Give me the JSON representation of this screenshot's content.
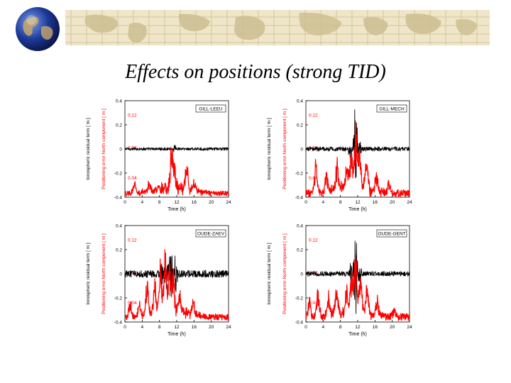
{
  "slide": {
    "title": "Effects on positions (strong TID)"
  },
  "colors": {
    "banner": "#efe6c9",
    "banner_lines": "#d2c59a",
    "ionosphere_series": "#000000",
    "position_series": "#ff0000"
  },
  "chart_data": [
    {
      "type": "line",
      "title": "GILL-LEEU",
      "xlabel": "Time (h)",
      "ylabel_left": "Positioning error North component [ m ]",
      "ylabel_right": "Ionospheric residual term [ m ]",
      "xlim": [
        0,
        24
      ],
      "xticks": [
        0,
        4,
        8,
        12,
        16,
        20,
        24
      ],
      "ylim": [
        -0.4,
        0.4
      ],
      "yticks": [
        -0.4,
        -0.2,
        0,
        0.2,
        0.4
      ],
      "ytick_labels": [
        "-0.4",
        "-0.2",
        "0",
        "0.2",
        "0.4"
      ],
      "inner_labels": [
        "0.12",
        "0.08",
        "0.04"
      ],
      "series": [
        {
          "name": "Ionospheric residual term",
          "color": "#000000",
          "baseline": 0.0,
          "noise": 0.012,
          "spikes": [
            {
              "t": 11.5,
              "amp": 0.03
            }
          ]
        },
        {
          "name": "Positioning error North component",
          "color": "#ff0000",
          "baseline": -0.37,
          "noise": 0.02,
          "spikes": [
            {
              "t": 2.2,
              "amp": 0.09
            },
            {
              "t": 5.5,
              "amp": 0.06
            },
            {
              "t": 10.8,
              "amp": 0.27
            },
            {
              "t": 11.4,
              "amp": 0.17
            },
            {
              "t": 14.3,
              "amp": 0.2
            },
            {
              "t": 16,
              "amp": 0.07
            }
          ]
        }
      ]
    },
    {
      "type": "line",
      "title": "GILL-MECH",
      "xlabel": "Time (h)",
      "ylabel_left": "Positioning error North component [ m ]",
      "ylabel_right": "Ionospheric residual term [ m ]",
      "xlim": [
        0,
        24
      ],
      "xticks": [
        0,
        4,
        8,
        12,
        16,
        20,
        24
      ],
      "ylim": [
        -0.4,
        0.4
      ],
      "yticks": [
        -0.4,
        -0.2,
        0,
        0.2,
        0.4
      ],
      "ytick_labels": [
        "-0.4",
        "-0.2",
        "0",
        "0.2",
        "0.4"
      ],
      "inner_labels": [
        "0.12",
        "0.08",
        "0.04"
      ],
      "series": [
        {
          "name": "Ionospheric residual term",
          "color": "#000000",
          "baseline": 0.0,
          "noise": 0.018,
          "spikes": [
            {
              "t": 10.2,
              "amp": 0.06
            },
            {
              "t": 11.5,
              "amp": 0.34
            },
            {
              "t": 12.3,
              "amp": 0.09
            }
          ]
        },
        {
          "name": "Positioning error North component",
          "color": "#ff0000",
          "baseline": -0.37,
          "noise": 0.03,
          "spikes": [
            {
              "t": 2.3,
              "amp": 0.25
            },
            {
              "t": 4.8,
              "amp": 0.16
            },
            {
              "t": 7.2,
              "amp": 0.22
            },
            {
              "t": 9.6,
              "amp": 0.2
            },
            {
              "t": 10.5,
              "amp": 0.3
            },
            {
              "t": 11.5,
              "amp": 0.48
            },
            {
              "t": 12.4,
              "amp": 0.32
            },
            {
              "t": 14,
              "amp": 0.24
            },
            {
              "t": 16.3,
              "amp": 0.15
            },
            {
              "t": 19.2,
              "amp": 0.08
            }
          ]
        }
      ]
    },
    {
      "type": "line",
      "title": "OUDE-ZAEV",
      "xlabel": "Time (h)",
      "ylabel_left": "Positioning error North component [ m ]",
      "ylabel_right": "Ionospheric residual term [ m ]",
      "xlim": [
        0,
        24
      ],
      "xticks": [
        0,
        4,
        8,
        12,
        16,
        20,
        24
      ],
      "ylim": [
        -0.4,
        0.4
      ],
      "yticks": [
        -0.4,
        -0.2,
        0,
        0.2,
        0.4
      ],
      "ytick_labels": [
        "-0.4",
        "-0.2",
        "0",
        "0.2",
        "0.4"
      ],
      "inner_labels": [
        "0.12",
        "0.08",
        "0.04"
      ],
      "series": [
        {
          "name": "Ionospheric residual term",
          "color": "#000000",
          "baseline": 0.0,
          "noise": 0.03,
          "spikes": [
            {
              "t": 8.5,
              "amp": 0.08
            },
            {
              "t": 9.6,
              "amp": 0.12
            },
            {
              "t": 10.6,
              "amp": 0.2
            },
            {
              "t": 11.7,
              "amp": 0.14
            }
          ]
        },
        {
          "name": "Positioning error North component",
          "color": "#ff0000",
          "baseline": -0.36,
          "noise": 0.025,
          "spikes": [
            {
              "t": 1.2,
              "amp": 0.12
            },
            {
              "t": 3.3,
              "amp": 0.1
            },
            {
              "t": 5.1,
              "amp": 0.28
            },
            {
              "t": 6.9,
              "amp": 0.24
            },
            {
              "t": 8.2,
              "amp": 0.34
            },
            {
              "t": 9.3,
              "amp": 0.42
            },
            {
              "t": 10.3,
              "amp": 0.36
            },
            {
              "t": 11.2,
              "amp": 0.3
            },
            {
              "t": 12.6,
              "amp": 0.14
            },
            {
              "t": 15.8,
              "amp": 0.1
            }
          ]
        }
      ]
    },
    {
      "type": "line",
      "title": "OUDE-GENT",
      "xlabel": "Time (h)",
      "ylabel_left": "Positioning error North component [ m ]",
      "ylabel_right": "Ionospheric residual term [ m ]",
      "xlim": [
        0,
        24
      ],
      "xticks": [
        0,
        4,
        8,
        12,
        16,
        20,
        24
      ],
      "ylim": [
        -0.4,
        0.4
      ],
      "yticks": [
        -0.4,
        -0.2,
        0,
        0.2,
        0.4
      ],
      "ytick_labels": [
        "-0.4",
        "-0.2",
        "0",
        "0.2",
        "0.4"
      ],
      "inner_labels": [
        "0.12",
        "0.08",
        "0.04"
      ],
      "series": [
        {
          "name": "Ionospheric residual term",
          "color": "#000000",
          "baseline": 0.0,
          "noise": 0.02,
          "spikes": [
            {
              "t": 10.4,
              "amp": 0.08
            },
            {
              "t": 11.5,
              "amp": 0.35
            },
            {
              "t": 12.5,
              "amp": 0.07
            }
          ]
        },
        {
          "name": "Positioning error North component",
          "color": "#ff0000",
          "baseline": -0.36,
          "noise": 0.03,
          "spikes": [
            {
              "t": 0.8,
              "amp": 0.14
            },
            {
              "t": 2.8,
              "amp": 0.22
            },
            {
              "t": 5.3,
              "amp": 0.16
            },
            {
              "t": 7.1,
              "amp": 0.2
            },
            {
              "t": 9.5,
              "amp": 0.18
            },
            {
              "t": 10.6,
              "amp": 0.28
            },
            {
              "t": 11.5,
              "amp": 0.44
            },
            {
              "t": 12.6,
              "amp": 0.3
            },
            {
              "t": 14.2,
              "amp": 0.22
            },
            {
              "t": 16.5,
              "amp": 0.14
            },
            {
              "t": 20.5,
              "amp": 0.08
            }
          ]
        }
      ]
    }
  ]
}
